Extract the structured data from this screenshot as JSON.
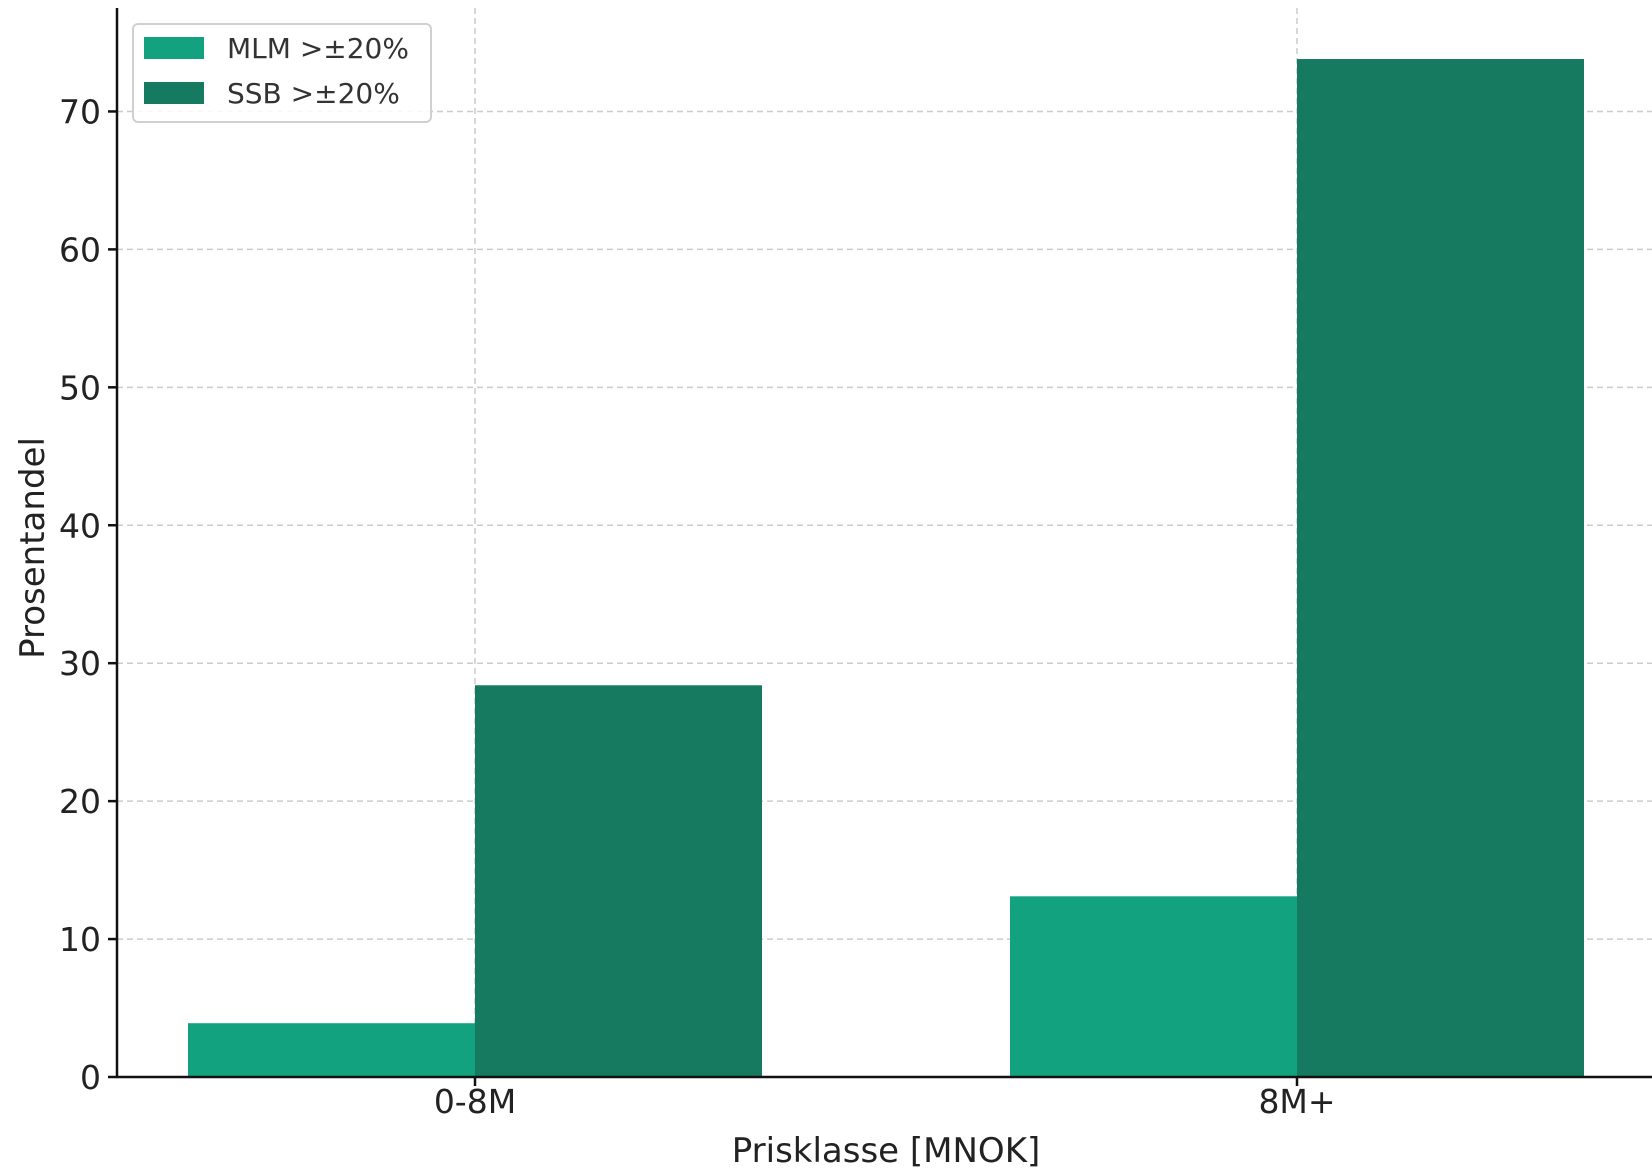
{
  "chart_data": {
    "type": "bar",
    "title": "",
    "xlabel": "Prisklasse [MNOK]",
    "ylabel": "Prosentandel",
    "categories": [
      "0-8M",
      "8M+"
    ],
    "series": [
      {
        "name": "MLM >±20%",
        "values": [
          3.9,
          13.1
        ],
        "color": "#12a27f"
      },
      {
        "name": "SSB >±20%",
        "values": [
          28.4,
          73.8
        ],
        "color": "#167a61"
      }
    ],
    "ylim": [
      0,
      77.5
    ],
    "yticks": [
      0,
      10,
      20,
      30,
      40,
      50,
      60,
      70
    ],
    "grid": true,
    "legend_position": "top-left"
  }
}
